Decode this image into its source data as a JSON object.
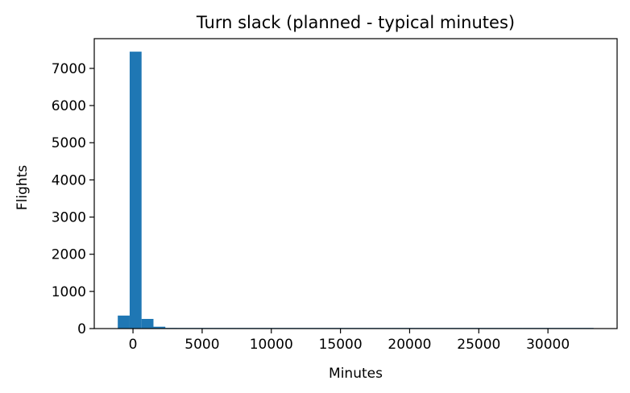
{
  "chart_data": {
    "type": "bar",
    "title": "Turn slack (planned - typical minutes)",
    "xlabel": "Minutes",
    "ylabel": "Flights",
    "xlim": [
      -2800,
      35000
    ],
    "ylim": [
      0,
      7800
    ],
    "xticks": [
      0,
      5000,
      10000,
      15000,
      20000,
      25000,
      30000
    ],
    "yticks": [
      0,
      1000,
      2000,
      3000,
      4000,
      5000,
      6000,
      7000
    ],
    "grid": false,
    "bar_color": "#1f77b4",
    "bins": [
      {
        "x0": -1100,
        "x1": -240,
        "count": 350
      },
      {
        "x0": -240,
        "x1": 620,
        "count": 7450
      },
      {
        "x0": 620,
        "x1": 1480,
        "count": 260
      },
      {
        "x0": 1480,
        "x1": 2340,
        "count": 50
      },
      {
        "x0": 2340,
        "x1": 3200,
        "count": 18
      },
      {
        "x0": 3200,
        "x1": 4060,
        "count": 10
      },
      {
        "x0": 4060,
        "x1": 4920,
        "count": 8
      },
      {
        "x0": 4920,
        "x1": 5780,
        "count": 6
      },
      {
        "x0": 5780,
        "x1": 6640,
        "count": 5
      },
      {
        "x0": 6640,
        "x1": 7500,
        "count": 4
      },
      {
        "x0": 7500,
        "x1": 8360,
        "count": 3
      },
      {
        "x0": 8360,
        "x1": 9220,
        "count": 3
      },
      {
        "x0": 9220,
        "x1": 10080,
        "count": 2
      },
      {
        "x0": 10080,
        "x1": 10940,
        "count": 2
      },
      {
        "x0": 10940,
        "x1": 11800,
        "count": 2
      },
      {
        "x0": 11800,
        "x1": 12660,
        "count": 1
      },
      {
        "x0": 12660,
        "x1": 13520,
        "count": 1
      },
      {
        "x0": 13520,
        "x1": 14380,
        "count": 1
      },
      {
        "x0": 14380,
        "x1": 15240,
        "count": 1
      },
      {
        "x0": 15240,
        "x1": 16100,
        "count": 1
      },
      {
        "x0": 16100,
        "x1": 16960,
        "count": 1
      },
      {
        "x0": 16960,
        "x1": 17820,
        "count": 1
      },
      {
        "x0": 17820,
        "x1": 18680,
        "count": 1
      },
      {
        "x0": 18680,
        "x1": 19540,
        "count": 1
      },
      {
        "x0": 19540,
        "x1": 20400,
        "count": 1
      },
      {
        "x0": 20400,
        "x1": 21260,
        "count": 1
      },
      {
        "x0": 21260,
        "x1": 22120,
        "count": 1
      },
      {
        "x0": 22120,
        "x1": 22980,
        "count": 1
      },
      {
        "x0": 22980,
        "x1": 23840,
        "count": 1
      },
      {
        "x0": 23840,
        "x1": 24700,
        "count": 1
      },
      {
        "x0": 24700,
        "x1": 25560,
        "count": 1
      },
      {
        "x0": 25560,
        "x1": 26420,
        "count": 1
      },
      {
        "x0": 26420,
        "x1": 27280,
        "count": 1
      },
      {
        "x0": 27280,
        "x1": 28140,
        "count": 1
      },
      {
        "x0": 28140,
        "x1": 29000,
        "count": 1
      },
      {
        "x0": 29000,
        "x1": 29860,
        "count": 1
      },
      {
        "x0": 29860,
        "x1": 30720,
        "count": 1
      },
      {
        "x0": 30720,
        "x1": 31580,
        "count": 1
      },
      {
        "x0": 31580,
        "x1": 32440,
        "count": 1
      },
      {
        "x0": 32440,
        "x1": 33300,
        "count": 1
      }
    ]
  }
}
